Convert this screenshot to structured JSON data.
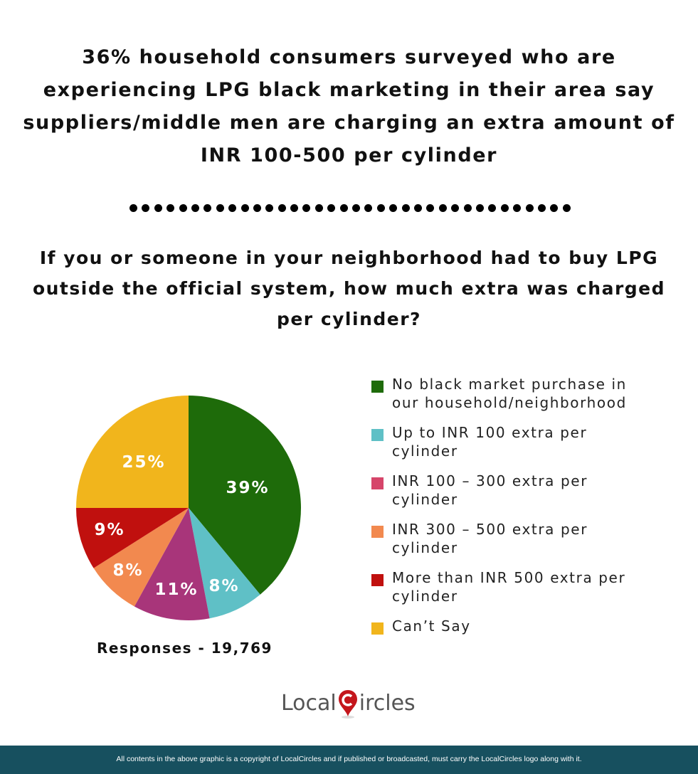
{
  "header": {
    "title": "36% household consumers surveyed who are experiencing LPG black marketing in their area say suppliers/middle men are charging an extra amount of INR 100-500 per cylinder",
    "divider_dot_count": 36
  },
  "question": "If you or someone in your neighborhood had to buy LPG outside the official system, how much extra was charged per cylinder?",
  "chart_data": {
    "type": "pie",
    "title": "If you or someone in your neighborhood had to buy LPG outside the official system, how much extra was charged per cylinder?",
    "start_angle": "top (12 o'clock), clockwise",
    "categories": [
      "No black market purchase in our household/neighborhood",
      "Up to INR 100 extra per cylinder",
      "INR 100 – 300 extra per cylinder",
      "INR 300 – 500 extra per cylinder",
      "More than INR 500 extra per cylinder",
      "Can't Say"
    ],
    "values": [
      39,
      8,
      11,
      8,
      9,
      25
    ],
    "labels": [
      "39%",
      "8%",
      "11%",
      "8%",
      "9%",
      "25%"
    ],
    "colors": [
      "#1e6b0a",
      "#5fc0c6",
      "#a8357a",
      "#f2894f",
      "#c0100e",
      "#f1b51c"
    ],
    "legend_colors": [
      "#1e6b0a",
      "#5fc0c6",
      "#d6456a",
      "#f2894f",
      "#c0100e",
      "#f1b51c"
    ],
    "legend_position": "right",
    "unit": "%"
  },
  "legend": {
    "items": [
      {
        "label": "No black market purchase in our household/neighborhood",
        "color": "#1e6b0a"
      },
      {
        "label": "Up to INR 100 extra per cylinder",
        "color": "#5fc0c6"
      },
      {
        "label": "INR 100 – 300 extra per cylinder",
        "color": "#d6456a"
      },
      {
        "label": "INR 300 – 500 extra per cylinder",
        "color": "#f2894f"
      },
      {
        "label": "More than INR 500 extra per cylinder",
        "color": "#c0100e"
      },
      {
        "label": "Can’t Say",
        "color": "#f1b51c"
      }
    ]
  },
  "slice_labels": {
    "s0": "39%",
    "s1": "8%",
    "s2": "11%",
    "s3": "8%",
    "s4": "9%",
    "s5": "25%"
  },
  "responses": "Responses - 19,769",
  "logo": {
    "part1": "Local",
    "part2": "ircles"
  },
  "footer": "All contents in the above graphic is a copyright of LocalCircles and if published or broadcasted, must carry the LocalCircles logo along with it."
}
